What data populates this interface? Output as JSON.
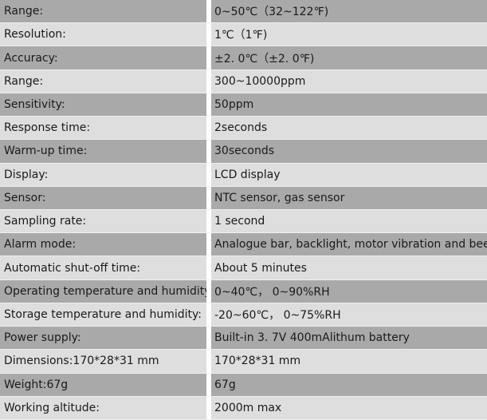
{
  "specs": [
    {
      "label": "Range:",
      "value": "0~50℃（32~122℉)"
    },
    {
      "label": "Resolution:",
      "value": "1℃（1℉)"
    },
    {
      "label": "Accuracy:",
      "value": "±2. 0℃（±2. 0℉)"
    },
    {
      "label": "Range:",
      "value": "300~10000ppm"
    },
    {
      "label": "Sensitivity:",
      "value": "50ppm"
    },
    {
      "label": "Response time:",
      "value": "2seconds"
    },
    {
      "label": "Warm-up time:",
      "value": "30seconds"
    },
    {
      "label": "Display:",
      "value": "LCD display"
    },
    {
      "label": "Sensor:",
      "value": "NTC sensor, gas sensor"
    },
    {
      "label": "Sampling rate:",
      "value": "1 second"
    },
    {
      "label": "Alarm mode:",
      "value": "Analogue bar, backlight, motor vibration and beep"
    },
    {
      "label": "Automatic shut-off time:",
      "value": "About 5 minutes"
    },
    {
      "label": "Operating temperature and humidity:",
      "value": "0~40℃，  0~90%RH"
    },
    {
      "label": "Storage temperature and humidity:",
      "value": "-20~60℃，  0~75%RH"
    },
    {
      "label": "Power supply:",
      "value": "Built-in 3. 7V 400mAlithum battery"
    },
    {
      "label": "Dimensions:170*28*31 mm",
      "value": "170*28*31 mm"
    },
    {
      "label": "Weight:67g",
      "value": "67g"
    },
    {
      "label": "Working altitude:",
      "value": "2000m max"
    }
  ],
  "colors": {
    "row_dark": "#a9a9a9",
    "row_light": "#dedede",
    "text": "#1a1a1a"
  }
}
